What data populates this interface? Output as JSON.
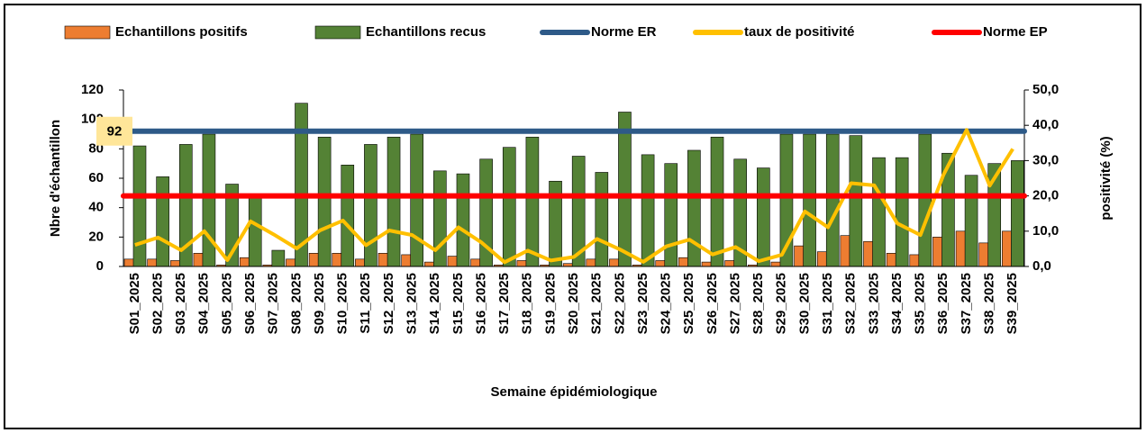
{
  "chart_data": {
    "type": "bar",
    "x_label": "Semaine épidémiologique",
    "y_label": "Nbre d'échantillon",
    "y2_label": "positivité (%)",
    "categories": [
      "S01_2025",
      "S02_2025",
      "S03_2025",
      "S04_2025",
      "S05_2025",
      "S06_2025",
      "S07_2025",
      "S08_2025",
      "S09_2025",
      "S10_2025",
      "S11_2025",
      "S12_2025",
      "S13_2025",
      "S14_2025",
      "S15_2025",
      "S16_2025",
      "S17_2025",
      "S18_2025",
      "S19_2025",
      "S20_2025",
      "S21_2025",
      "S22_2025",
      "S23_2025",
      "S24_2025",
      "S25_2025",
      "S26_2025",
      "S27_2025",
      "S28_2025",
      "S29_2025",
      "S30_2025",
      "S31_2025",
      "S32_2025",
      "S33_2025",
      "S34_2025",
      "S35_2025",
      "S36_2025",
      "S37_2025",
      "S38_2025",
      "S39_2025"
    ],
    "series": [
      {
        "name": "Echantillons positifs",
        "type": "bar",
        "color": "#ed7d31",
        "values": [
          5,
          5,
          4,
          9,
          1,
          6,
          1,
          5,
          9,
          9,
          5,
          9,
          8,
          3,
          7,
          5,
          1,
          4,
          1,
          2,
          5,
          5,
          1,
          4,
          6,
          3,
          4,
          1,
          3,
          14,
          10,
          21,
          17,
          9,
          8,
          20,
          24,
          16,
          24
        ]
      },
      {
        "name": "Echantillons recus",
        "type": "bar",
        "color": "#548235",
        "values": [
          82,
          61,
          83,
          90,
          56,
          47,
          11,
          111,
          88,
          69,
          83,
          88,
          90,
          65,
          63,
          73,
          81,
          88,
          58,
          75,
          64,
          105,
          76,
          70,
          79,
          88,
          73,
          67,
          90,
          90,
          90,
          89,
          74,
          74,
          90,
          77,
          62,
          70,
          72
        ]
      },
      {
        "name": "Norme ER",
        "type": "hline",
        "color": "#2e5a88",
        "value": 92
      },
      {
        "name": "taux de positivité",
        "type": "line",
        "color": "#ffc000",
        "axis": "y2",
        "values": [
          6.1,
          8.2,
          4.6,
          10,
          1.8,
          12.8,
          9.1,
          5.1,
          10.2,
          13,
          6,
          10.2,
          8.9,
          4.6,
          11.1,
          6.8,
          1.2,
          4.5,
          1.7,
          2.7,
          7.8,
          4.8,
          1.3,
          5.7,
          7.6,
          3.4,
          5.5,
          1.5,
          3.3,
          15.6,
          11.1,
          23.6,
          23,
          12.2,
          8.9,
          26,
          38.7,
          22.9,
          33.3
        ]
      },
      {
        "name": "Norme EP",
        "type": "hline",
        "color": "#ff0000",
        "axis": "y2",
        "value": 20
      }
    ],
    "ylim": [
      0,
      120
    ],
    "yticks": [
      0,
      20,
      40,
      60,
      80,
      100,
      120
    ],
    "y2lim": [
      0,
      50
    ],
    "y2ticks": [
      {
        "value": 0,
        "label": "0,0"
      },
      {
        "value": 10,
        "label": "10,0"
      },
      {
        "value": 20,
        "label": "20,0"
      },
      {
        "value": 30,
        "label": "30,0"
      },
      {
        "value": 40,
        "label": "40,0"
      },
      {
        "value": 50,
        "label": "50,0"
      }
    ],
    "legend": "top"
  }
}
